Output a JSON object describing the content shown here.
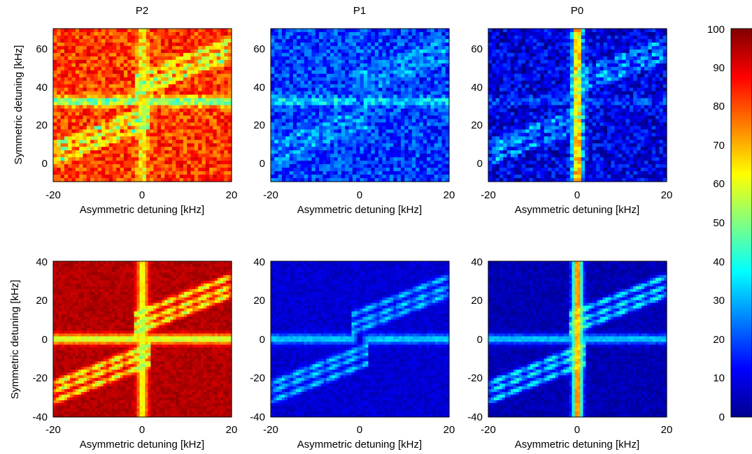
{
  "chart_data": {
    "type": "heatmap",
    "colormap": "jet",
    "colorbar": {
      "range": [
        0,
        100
      ],
      "ticks": [
        "0",
        "10",
        "20",
        "30",
        "40",
        "50",
        "60",
        "70",
        "80",
        "90",
        "100"
      ],
      "placement": "right"
    },
    "panels": [
      {
        "title": "P2",
        "row": "top",
        "base": 82,
        "cross_value": 38,
        "streak_value": 60,
        "band_value": 40,
        "xlabel": "Asymmetric detuning [kHz]",
        "ylabel": "Symmetric detuning [kHz]",
        "xlim": [
          -20,
          20
        ],
        "ylim": [
          -10,
          70
        ],
        "xticks": [
          "-20",
          "0",
          "20"
        ],
        "yticks": [
          "0",
          "20",
          "40",
          "60"
        ]
      },
      {
        "title": "P1",
        "row": "top",
        "base": 18,
        "cross_value": 40,
        "streak_value": 20,
        "band_value": 35,
        "xlabel": "Asymmetric detuning [kHz]",
        "ylabel": "",
        "xlim": [
          -20,
          20
        ],
        "ylim": [
          -10,
          70
        ],
        "xticks": [
          "-20",
          "0",
          "20"
        ],
        "yticks": [
          "0",
          "20",
          "40",
          "60"
        ]
      },
      {
        "title": "P0",
        "row": "top",
        "base": 10,
        "cross_value": 20,
        "streak_value": 75,
        "band_value": 40,
        "xlabel": "Asymmetric detuning [kHz]",
        "ylabel": "",
        "xlim": [
          -20,
          20
        ],
        "ylim": [
          -10,
          70
        ],
        "xticks": [
          "-20",
          "0",
          "20"
        ],
        "yticks": [
          "0",
          "20",
          "40",
          "60"
        ]
      },
      {
        "title": "",
        "row": "bottom",
        "base": 95,
        "cross_value": 45,
        "streak_value": 60,
        "band_value": 40,
        "xlabel": "Asymmetric detuning [kHz]",
        "ylabel": "Symmetric detuning [kHz]",
        "xlim": [
          -20,
          20
        ],
        "ylim": [
          -40,
          40
        ],
        "xticks": [
          "-20",
          "0",
          "20"
        ],
        "yticks": [
          "-40",
          "-20",
          "0",
          "20",
          "40"
        ]
      },
      {
        "title": "",
        "row": "bottom",
        "base": 8,
        "cross_value": 40,
        "streak_value": 8,
        "band_value": 45,
        "xlabel": "Asymmetric detuning [kHz]",
        "ylabel": "",
        "xlim": [
          -20,
          20
        ],
        "ylim": [
          -40,
          40
        ],
        "xticks": [
          "-20",
          "0",
          "20"
        ],
        "yticks": [
          "-40",
          "-20",
          "0",
          "20",
          "40"
        ]
      },
      {
        "title": "",
        "row": "bottom",
        "base": 5,
        "cross_value": 40,
        "streak_value": 78,
        "band_value": 55,
        "xlabel": "Asymmetric detuning [kHz]",
        "ylabel": "",
        "xlim": [
          -20,
          20
        ],
        "ylim": [
          -40,
          40
        ],
        "xticks": [
          "-20",
          "0",
          "20"
        ],
        "yticks": [
          "-40",
          "-20",
          "0",
          "20",
          "40"
        ]
      }
    ]
  }
}
